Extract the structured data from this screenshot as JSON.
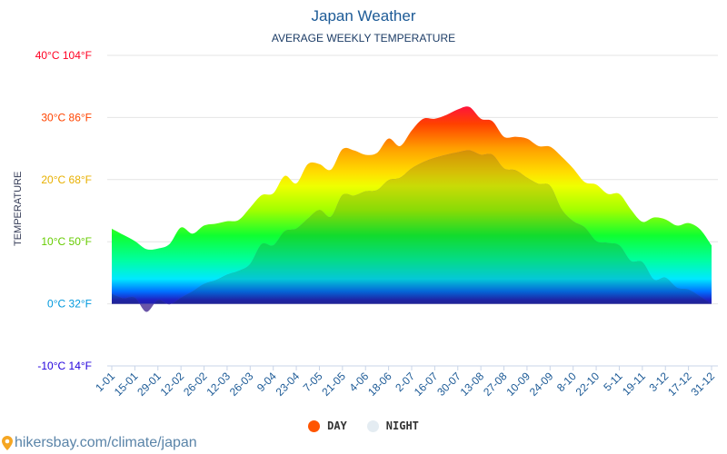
{
  "chart_data": {
    "type": "area",
    "title": "Japan Weather",
    "subtitle": "AVERAGE WEEKLY TEMPERATURE",
    "ylabel": "TEMPERATURE",
    "ylim": [
      -10,
      40
    ],
    "y_ticks": [
      {
        "value": 40,
        "label": "40°C 104°F",
        "color": "#ff0022"
      },
      {
        "value": 30,
        "label": "30°C 86°F",
        "color": "#ff4400"
      },
      {
        "value": 20,
        "label": "20°C 68°F",
        "color": "#e8b000"
      },
      {
        "value": 10,
        "label": "10°C 50°F",
        "color": "#66cc00"
      },
      {
        "value": 0,
        "label": "0°C 32°F",
        "color": "#0099dd"
      },
      {
        "value": -10,
        "label": "-10°C 14°F",
        "color": "#2200dd"
      }
    ],
    "x_tick_labels": [
      "1-01",
      "15-01",
      "29-01",
      "12-02",
      "26-02",
      "12-03",
      "26-03",
      "9-04",
      "23-04",
      "7-05",
      "21-05",
      "4-06",
      "18-06",
      "2-07",
      "16-07",
      "30-07",
      "13-08",
      "27-08",
      "10-09",
      "24-09",
      "8-10",
      "22-10",
      "5-11",
      "19-11",
      "3-12",
      "17-12",
      "31-12"
    ],
    "grid": true,
    "legend_position": "bottom",
    "series": [
      {
        "name": "DAY",
        "color": "#ff5500",
        "values": [
          12.1,
          11.1,
          10.1,
          8.8,
          8.9,
          9.6,
          12.3,
          11.3,
          12.6,
          12.9,
          13.3,
          13.5,
          15.5,
          17.5,
          17.8,
          20.6,
          19.4,
          22.5,
          22.5,
          21.6,
          24.9,
          24.7,
          24.0,
          24.3,
          26.6,
          25.4,
          27.9,
          29.8,
          29.8,
          30.4,
          31.3,
          31.7,
          29.8,
          29.4,
          26.9,
          26.9,
          26.6,
          25.4,
          25.3,
          23.7,
          21.8,
          19.6,
          19.2,
          17.7,
          17.7,
          15.2,
          13.2,
          13.9,
          13.6,
          12.6,
          13.0,
          12.0,
          9.4
        ]
      },
      {
        "name": "NIGHT",
        "color": "#e4ecf2",
        "values": [
          1.6,
          0.9,
          1.0,
          -1.3,
          0.6,
          -0.1,
          1.0,
          2.0,
          3.2,
          3.8,
          4.7,
          5.3,
          6.4,
          9.6,
          9.4,
          11.7,
          12.1,
          13.7,
          15.1,
          14.0,
          17.5,
          17.4,
          18.1,
          18.3,
          19.9,
          20.3,
          21.8,
          22.8,
          23.5,
          24.0,
          24.4,
          24.7,
          24.0,
          24.0,
          21.8,
          21.5,
          20.3,
          19.3,
          19.0,
          15.2,
          13.3,
          12.3,
          10.1,
          9.8,
          9.4,
          6.9,
          6.7,
          3.9,
          4.2,
          2.6,
          2.3,
          1.2,
          0.0
        ]
      }
    ]
  },
  "footer": {
    "text": "hikersbay.com/climate/japan",
    "icon": "map-pin-icon"
  }
}
